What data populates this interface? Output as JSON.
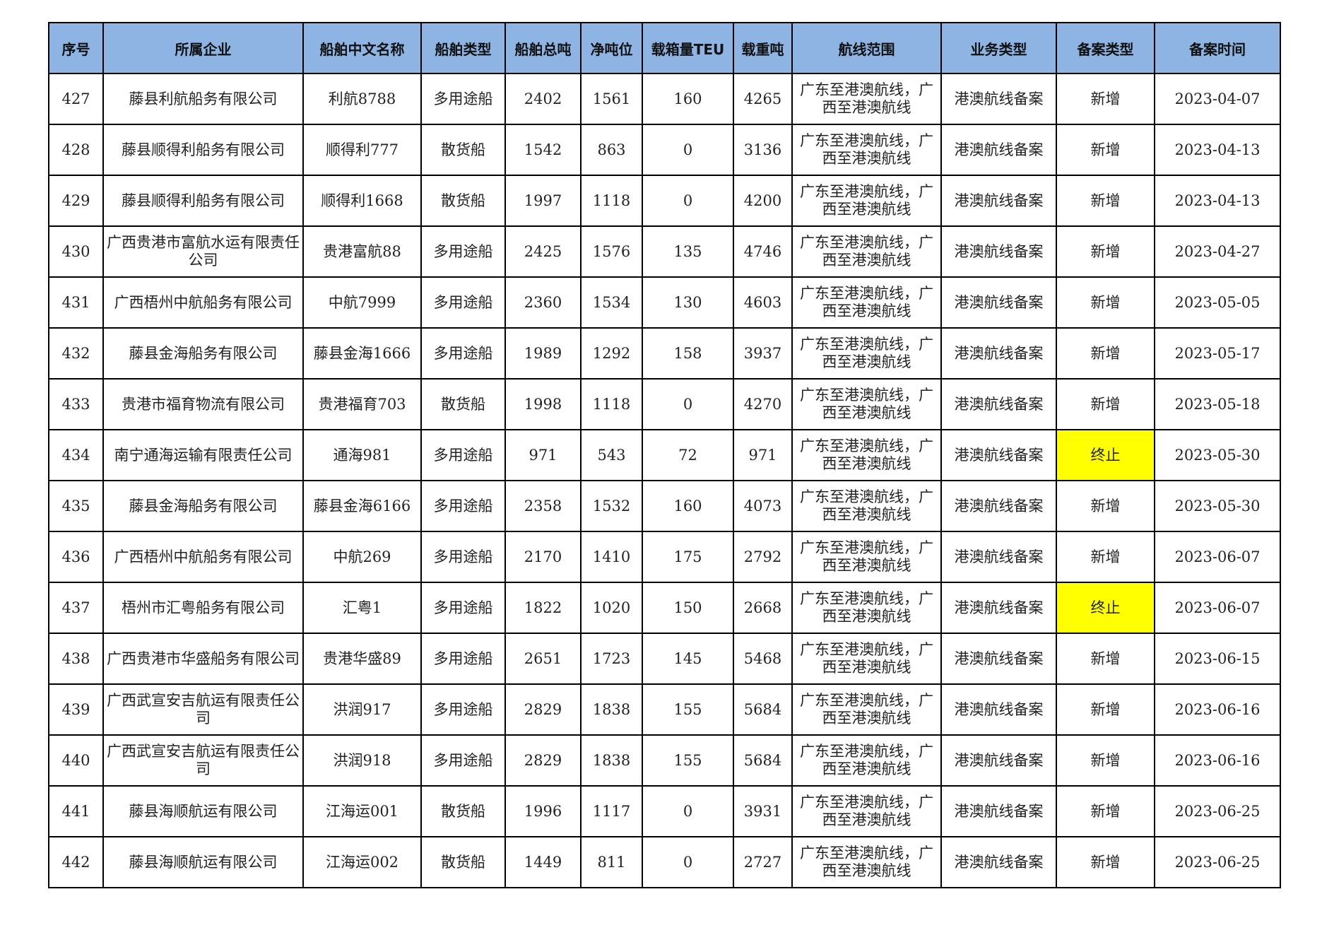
{
  "colors": {
    "header_bg": "#8DB4E2",
    "highlight": "#FFFF00"
  },
  "table": {
    "headers": [
      "序号",
      "所属企业",
      "船舶中文名称",
      "船舶类型",
      "船舶总吨",
      "净吨位",
      "载箱量TEU",
      "载重吨",
      "航线范围",
      "业务类型",
      "备案类型",
      "备案时间"
    ],
    "rows": [
      [
        "427",
        "藤县利航船务有限公司",
        "利航8788",
        "多用途船",
        "2402",
        "1561",
        "160",
        "4265",
        "广东至港澳航线，广西至港澳航线",
        "港澳航线备案",
        "新增",
        "2023-04-07"
      ],
      [
        "428",
        "藤县顺得利船务有限公司",
        "顺得利777",
        "散货船",
        "1542",
        "863",
        "0",
        "3136",
        "广东至港澳航线，广西至港澳航线",
        "港澳航线备案",
        "新增",
        "2023-04-13"
      ],
      [
        "429",
        "藤县顺得利船务有限公司",
        "顺得利1668",
        "散货船",
        "1997",
        "1118",
        "0",
        "4200",
        "广东至港澳航线，广西至港澳航线",
        "港澳航线备案",
        "新增",
        "2023-04-13"
      ],
      [
        "430",
        "广西贵港市富航水运有限责任公司",
        "贵港富航88",
        "多用途船",
        "2425",
        "1576",
        "135",
        "4746",
        "广东至港澳航线，广西至港澳航线",
        "港澳航线备案",
        "新增",
        "2023-04-27"
      ],
      [
        "431",
        "广西梧州中航船务有限公司",
        "中航7999",
        "多用途船",
        "2360",
        "1534",
        "130",
        "4603",
        "广东至港澳航线，广西至港澳航线",
        "港澳航线备案",
        "新增",
        "2023-05-05"
      ],
      [
        "432",
        "藤县金海船务有限公司",
        "藤县金海1666",
        "多用途船",
        "1989",
        "1292",
        "158",
        "3937",
        "广东至港澳航线，广西至港澳航线",
        "港澳航线备案",
        "新增",
        "2023-05-17"
      ],
      [
        "433",
        "贵港市福育物流有限公司",
        "贵港福育703",
        "散货船",
        "1998",
        "1118",
        "0",
        "4270",
        "广东至港澳航线，广西至港澳航线",
        "港澳航线备案",
        "新增",
        "2023-05-18"
      ],
      [
        "434",
        "南宁通海运输有限责任公司",
        "通海981",
        "多用途船",
        "971",
        "543",
        "72",
        "971",
        "广东至港澳航线，广西至港澳航线",
        "港澳航线备案",
        "终止",
        "2023-05-30"
      ],
      [
        "435",
        "藤县金海船务有限公司",
        "藤县金海6166",
        "多用途船",
        "2358",
        "1532",
        "160",
        "4073",
        "广东至港澳航线，广西至港澳航线",
        "港澳航线备案",
        "新增",
        "2023-05-30"
      ],
      [
        "436",
        "广西梧州中航船务有限公司",
        "中航269",
        "多用途船",
        "2170",
        "1410",
        "175",
        "2792",
        "广东至港澳航线，广西至港澳航线",
        "港澳航线备案",
        "新增",
        "2023-06-07"
      ],
      [
        "437",
        "梧州市汇粤船务有限公司",
        "汇粤1",
        "多用途船",
        "1822",
        "1020",
        "150",
        "2668",
        "广东至港澳航线，广西至港澳航线",
        "港澳航线备案",
        "终止",
        "2023-06-07"
      ],
      [
        "438",
        "广西贵港市华盛船务有限公司",
        "贵港华盛89",
        "多用途船",
        "2651",
        "1723",
        "145",
        "5468",
        "广东至港澳航线，广西至港澳航线",
        "港澳航线备案",
        "新增",
        "2023-06-15"
      ],
      [
        "439",
        "广西武宣安吉航运有限责任公司",
        "洪润917",
        "多用途船",
        "2829",
        "1838",
        "155",
        "5684",
        "广东至港澳航线，广西至港澳航线",
        "港澳航线备案",
        "新增",
        "2023-06-16"
      ],
      [
        "440",
        "广西武宣安吉航运有限责任公司",
        "洪润918",
        "多用途船",
        "2829",
        "1838",
        "155",
        "5684",
        "广东至港澳航线，广西至港澳航线",
        "港澳航线备案",
        "新增",
        "2023-06-16"
      ],
      [
        "441",
        "藤县海顺航运有限公司",
        "江海运001",
        "散货船",
        "1996",
        "1117",
        "0",
        "3931",
        "广东至港澳航线，广西至港澳航线",
        "港澳航线备案",
        "新增",
        "2023-06-25"
      ],
      [
        "442",
        "藤县海顺航运有限公司",
        "江海运002",
        "散货船",
        "1449",
        "811",
        "0",
        "2727",
        "广东至港澳航线，广西至港澳航线",
        "港澳航线备案",
        "新增",
        "2023-06-25"
      ]
    ],
    "highlighted_value": "终止"
  }
}
